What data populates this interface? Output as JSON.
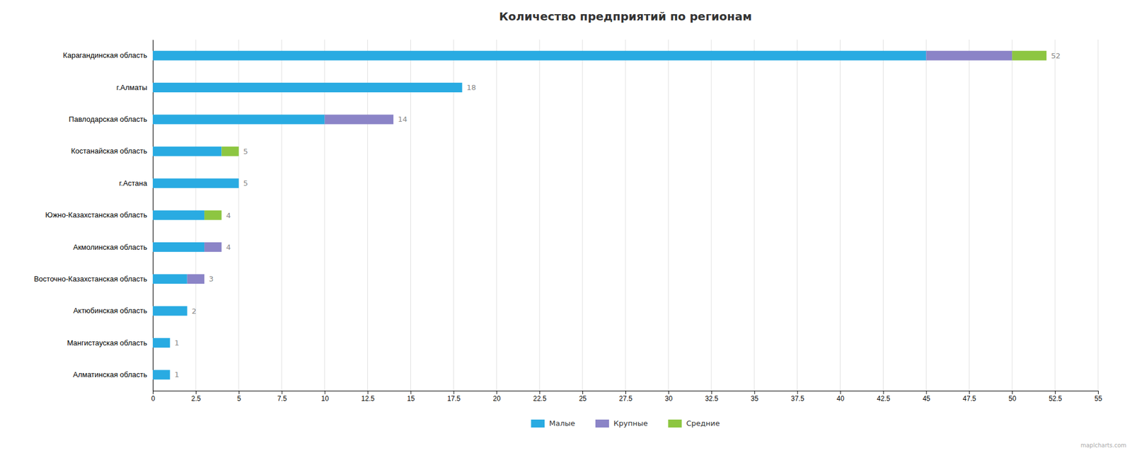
{
  "chart_data": {
    "type": "bar",
    "orientation": "horizontal",
    "stacked": true,
    "title": "Количество предприятий по регионам",
    "categories": [
      "Карагандинская область",
      "г.Алматы",
      "Павлодарская область",
      "Костанайская область",
      "г.Астана",
      "Южно-Казахстанская область",
      "Акмолинская область",
      "Восточно-Казахстанская область",
      "Актюбинская область",
      "Мангистауская область",
      "Алматинская область"
    ],
    "series": [
      {
        "name": "Малые",
        "color": "#29ABE2",
        "values": [
          45,
          18,
          10,
          4,
          5,
          3,
          3,
          2,
          2,
          1,
          1
        ]
      },
      {
        "name": "Крупные",
        "color": "#8B84C7",
        "values": [
          5,
          0,
          4,
          0,
          0,
          0,
          1,
          1,
          0,
          0,
          0
        ]
      },
      {
        "name": "Средние",
        "color": "#8DC641",
        "values": [
          2,
          0,
          0,
          1,
          0,
          1,
          0,
          0,
          0,
          0,
          0
        ]
      }
    ],
    "totals": [
      52,
      18,
      14,
      5,
      5,
      4,
      4,
      3,
      2,
      1,
      1
    ],
    "xlim": [
      0,
      55
    ],
    "xticks": [
      0,
      2.5,
      5,
      7.5,
      10,
      12.5,
      15,
      17.5,
      20,
      22.5,
      25,
      27.5,
      30,
      32.5,
      35,
      37.5,
      40,
      42.5,
      45,
      47.5,
      50,
      52.5,
      55
    ],
    "grid": true,
    "legend": "bottom",
    "annotations": [
      "maplcharts.com"
    ]
  }
}
